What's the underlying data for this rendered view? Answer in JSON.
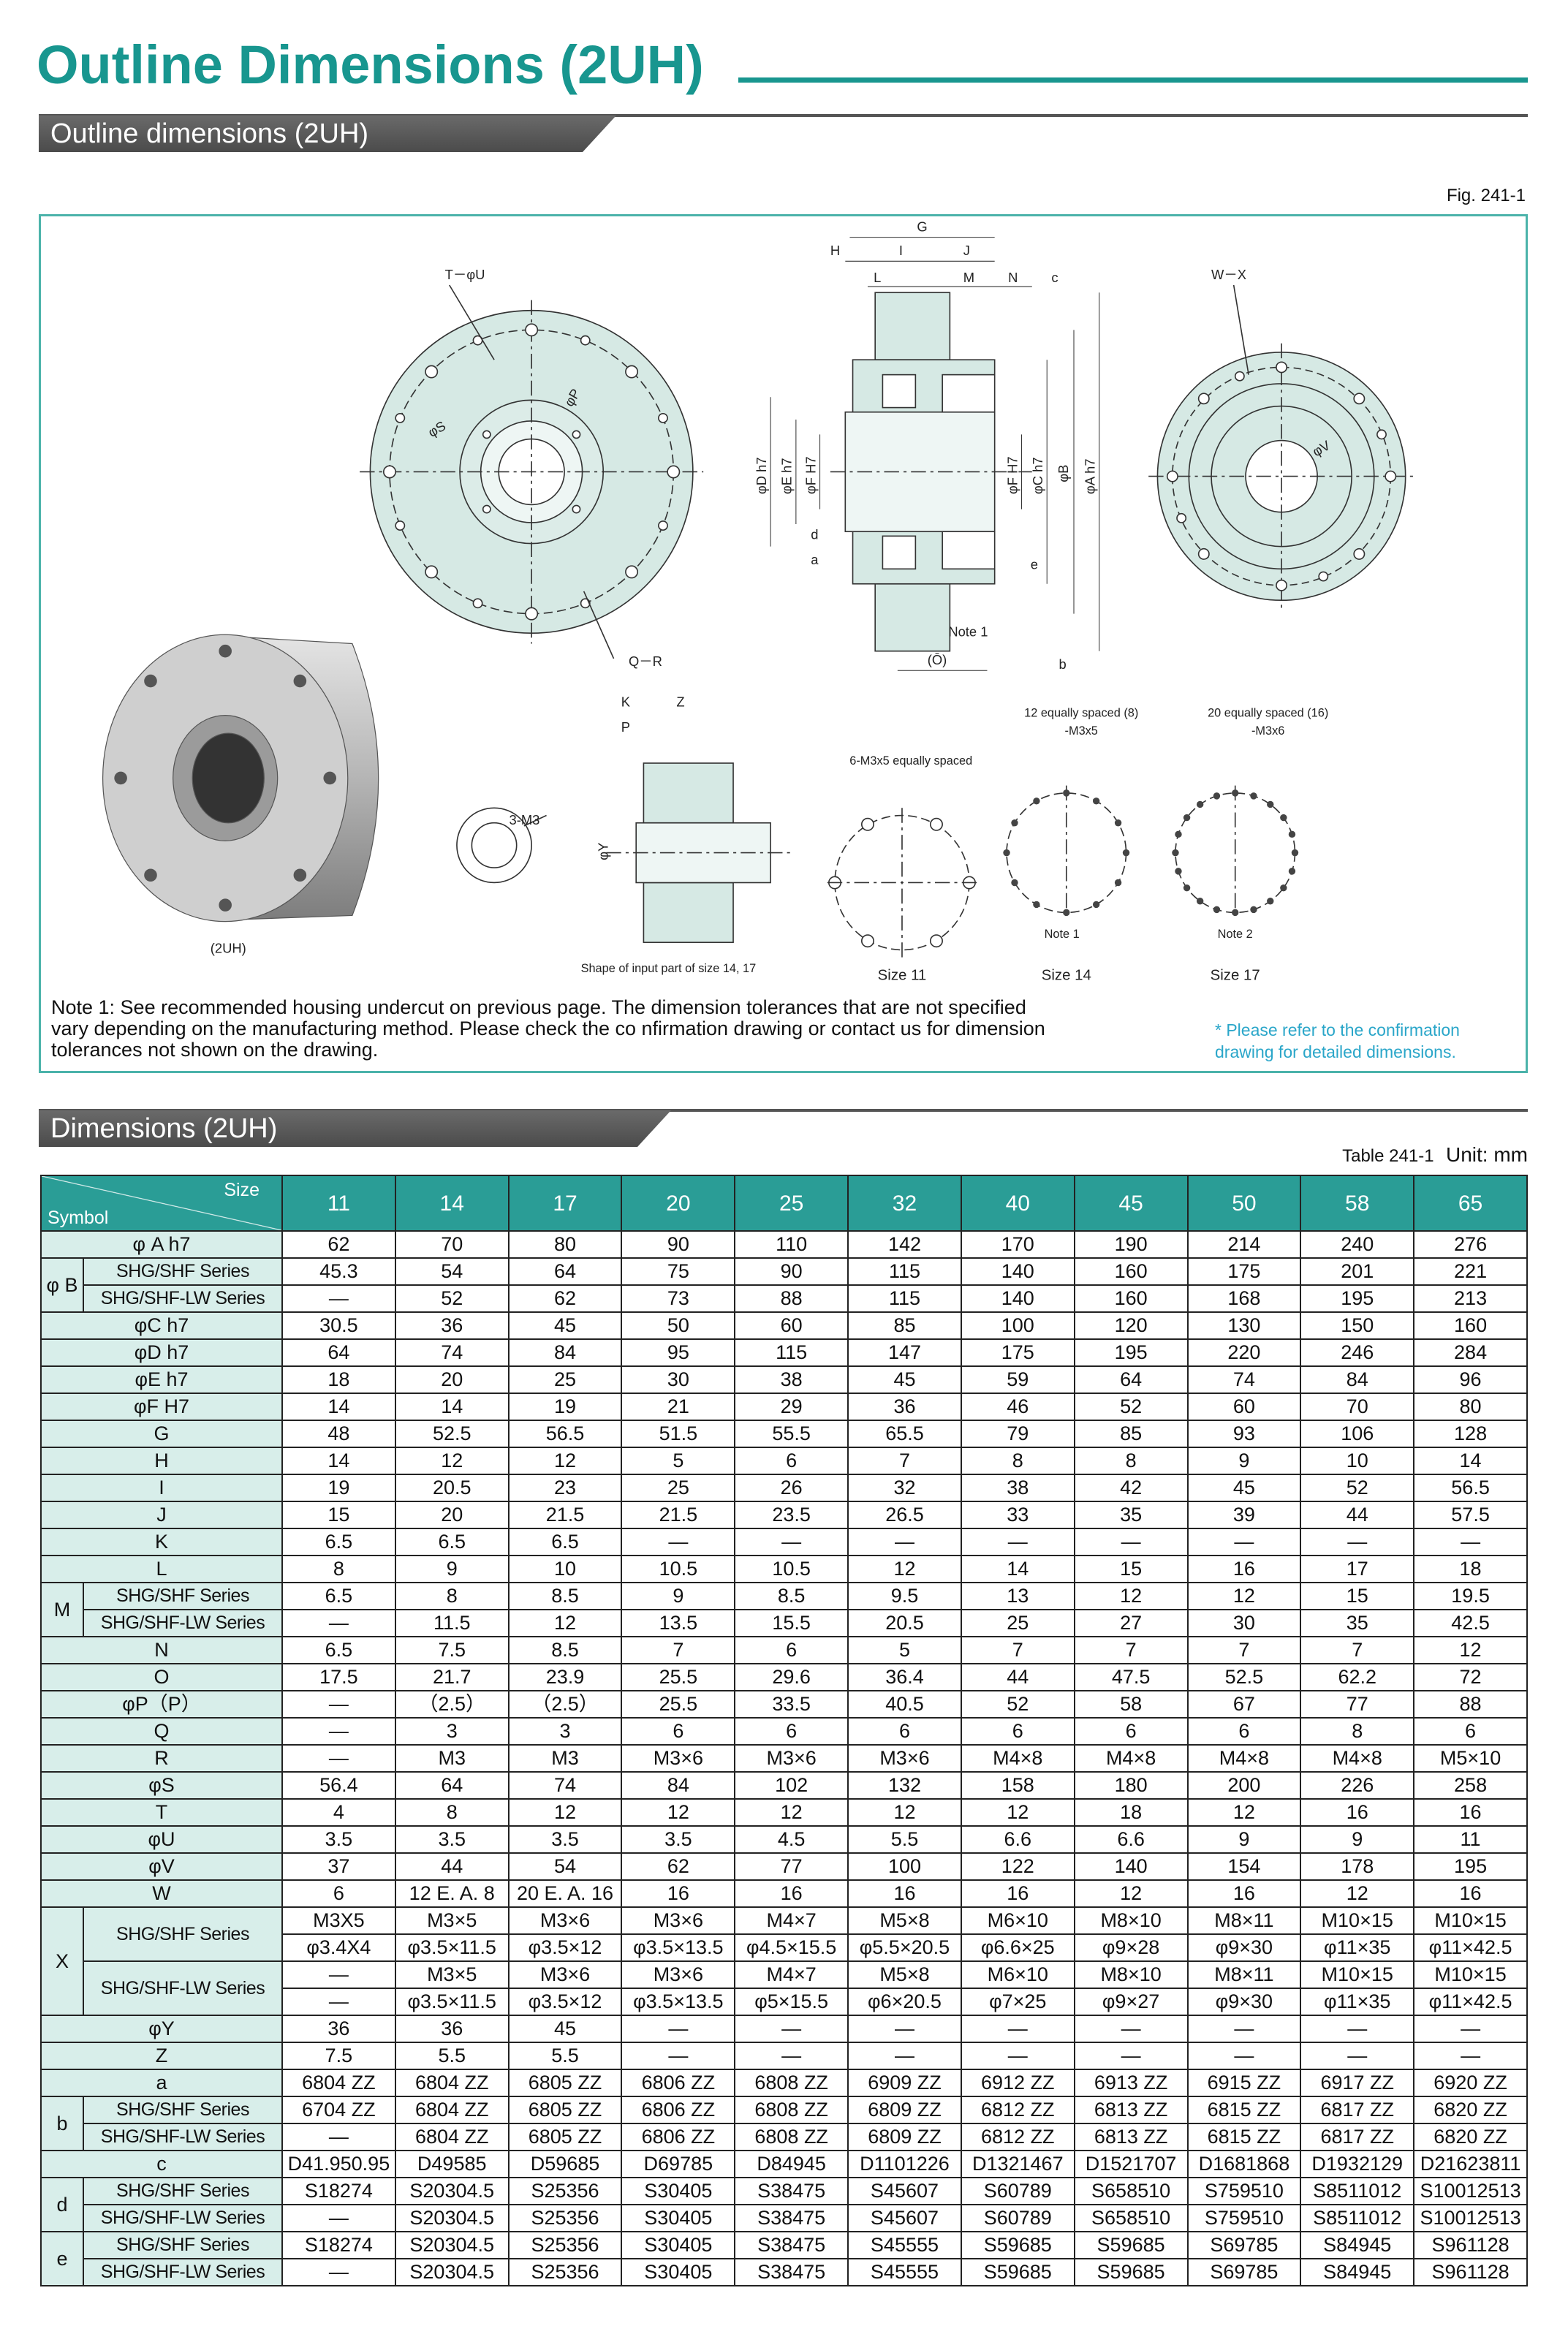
{
  "header": {
    "title": "Outline Dimensions (2UH)",
    "section": "Outline dimensions (2UH)"
  },
  "figure": {
    "caption": "Fig. 241-1",
    "labels": [
      "T－φU",
      "φS",
      "φP",
      "Q－R",
      "G",
      "H",
      "I",
      "J",
      "L",
      "M",
      "N",
      "c",
      "φD h7",
      "φE h7",
      "φF H7",
      "φF H7",
      "φC h7",
      "φB",
      "φA h7",
      "d",
      "a",
      "e",
      "Note 1",
      "(Ō)",
      "b",
      "W－X",
      "φV",
      "K",
      "Z",
      "P",
      "φY",
      "3-M3",
      "(2UH)",
      "Shape of input part of size 14, 17",
      "6-M3x5 equally spaced",
      "12 equally spaced (8)",
      "-M3x5",
      "20 equally spaced (16)",
      "-M3x6",
      "Size 11",
      "Size 14",
      "Size 17",
      "Note 1",
      "Note 2"
    ],
    "note": [
      "Note 1: See recommended housing undercut on previous page.  The dimension tolerances that are not specified",
      "vary depending on the manufacturing method. Please check the co nfirmation drawing or contact us for dimension",
      "tolerances not shown on the drawing."
    ],
    "side_note": [
      "* Please refer to the confirmation",
      "drawing for detailed dimensions."
    ]
  },
  "table": {
    "section": "Dimensions (2UH)",
    "caption": "Table 241-1",
    "unit": "Unit: mm",
    "size_label": "Size",
    "symbol_label": "Symbol",
    "sizes": [
      11,
      14,
      17,
      20,
      25,
      32,
      40,
      45,
      50,
      58,
      65
    ],
    "rows": [
      {
        "symbol": "φ A h7",
        "values": [
          62,
          70,
          80,
          90,
          110,
          142,
          170,
          190,
          214,
          240,
          276
        ]
      },
      {
        "group": "φ B",
        "rows": [
          {
            "symbol": "SHG/SHF Series",
            "values": [
              45.3,
              54,
              64,
              75,
              90,
              115,
              140,
              160,
              175,
              201,
              221
            ]
          },
          {
            "symbol": "SHG/SHF-LW Series",
            "values": [
              "—",
              52,
              62,
              73,
              88,
              115,
              140,
              160,
              168,
              195,
              213
            ]
          }
        ]
      },
      {
        "symbol": "φC h7",
        "values": [
          30.5,
          36,
          45,
          50,
          60,
          85,
          100,
          120,
          130,
          150,
          160
        ]
      },
      {
        "symbol": "φD h7",
        "values": [
          64,
          74,
          84,
          95,
          115,
          147,
          175,
          195,
          220,
          246,
          284
        ]
      },
      {
        "symbol": "φE h7",
        "values": [
          18,
          20,
          25,
          30,
          38,
          45,
          59,
          64,
          74,
          84,
          96
        ]
      },
      {
        "symbol": "φF H7",
        "values": [
          14,
          14,
          19,
          21,
          29,
          36,
          46,
          52,
          60,
          70,
          80
        ]
      },
      {
        "symbol": "G",
        "values": [
          48,
          52.5,
          56.5,
          51.5,
          55.5,
          65.5,
          79,
          85,
          93,
          106,
          128
        ]
      },
      {
        "symbol": "H",
        "values": [
          14,
          12,
          12,
          5,
          6,
          7,
          8,
          8,
          9,
          10,
          14
        ]
      },
      {
        "symbol": "I",
        "values": [
          19,
          20.5,
          23,
          25,
          26,
          32,
          38,
          42,
          45,
          52,
          56.5
        ]
      },
      {
        "symbol": "J",
        "values": [
          15,
          20,
          21.5,
          21.5,
          23.5,
          26.5,
          33,
          35,
          39,
          44,
          57.5
        ]
      },
      {
        "symbol": "K",
        "values": [
          6.5,
          6.5,
          6.5,
          "—",
          "—",
          "—",
          "—",
          "—",
          "—",
          "—",
          "—"
        ]
      },
      {
        "symbol": "L",
        "values": [
          8,
          9,
          10,
          10.5,
          10.5,
          12,
          14,
          15,
          16,
          17,
          18
        ]
      },
      {
        "group": "M",
        "rows": [
          {
            "symbol": "SHG/SHF Series",
            "values": [
              6.5,
              8,
              8.5,
              9,
              8.5,
              9.5,
              13,
              12,
              12,
              15,
              19.5
            ]
          },
          {
            "symbol": "SHG/SHF-LW Series",
            "values": [
              "—",
              11.5,
              12,
              13.5,
              15.5,
              20.5,
              25,
              27,
              30,
              35,
              42.5
            ]
          }
        ]
      },
      {
        "symbol": "N",
        "values": [
          6.5,
          7.5,
          8.5,
          7,
          6,
          5,
          7,
          7,
          7,
          7,
          12
        ]
      },
      {
        "symbol": "O",
        "values": [
          17.5,
          21.7,
          23.9,
          25.5,
          29.6,
          36.4,
          44,
          47.5,
          52.5,
          62.2,
          72
        ]
      },
      {
        "symbol": "φP（P）",
        "values": [
          "—",
          "（2.5）",
          "（2.5）",
          25.5,
          33.5,
          40.5,
          52,
          58,
          67,
          77,
          88
        ]
      },
      {
        "symbol": "Q",
        "values": [
          "—",
          3,
          3,
          6,
          6,
          6,
          6,
          6,
          6,
          8,
          6
        ]
      },
      {
        "symbol": "R",
        "values": [
          "—",
          "M3",
          "M3",
          "M3×6",
          "M3×6",
          "M3×6",
          "M4×8",
          "M4×8",
          "M4×8",
          "M4×8",
          "M5×10"
        ]
      },
      {
        "symbol": "φS",
        "values": [
          56.4,
          64,
          74,
          84,
          102,
          132,
          158,
          180,
          200,
          226,
          258
        ]
      },
      {
        "symbol": "T",
        "values": [
          4,
          8,
          12,
          12,
          12,
          12,
          12,
          18,
          12,
          16,
          16
        ]
      },
      {
        "symbol": "φU",
        "values": [
          3.5,
          3.5,
          3.5,
          3.5,
          4.5,
          5.5,
          6.6,
          6.6,
          9,
          9,
          11
        ]
      },
      {
        "symbol": "φV",
        "values": [
          37,
          44,
          54,
          62,
          77,
          100,
          122,
          140,
          154,
          178,
          195
        ]
      },
      {
        "symbol": "W",
        "values": [
          6,
          "12 E. A. 8",
          "20 E. A. 16",
          16,
          16,
          16,
          16,
          12,
          16,
          12,
          16
        ]
      },
      {
        "group": "X",
        "rows": [
          {
            "symbol": "SHG/SHF Series",
            "lines": [
              [
                "M3X5",
                "M3×5",
                "M3×6",
                "M3×6",
                "M4×7",
                "M5×8",
                "M6×10",
                "M8×10",
                "M8×11",
                "M10×15",
                "M10×15"
              ],
              [
                "φ3.4X4",
                "φ3.5×11.5",
                "φ3.5×12",
                "φ3.5×13.5",
                "φ4.5×15.5",
                "φ5.5×20.5",
                "φ6.6×25",
                "φ9×28",
                "φ9×30",
                "φ11×35",
                "φ11×42.5"
              ]
            ]
          },
          {
            "symbol": "SHG/SHF-LW Series",
            "lines": [
              [
                "—",
                "M3×5",
                "M3×6",
                "M3×6",
                "M4×7",
                "M5×8",
                "M6×10",
                "M8×10",
                "M8×11",
                "M10×15",
                "M10×15"
              ],
              [
                "—",
                "φ3.5×11.5",
                "φ3.5×12",
                "φ3.5×13.5",
                "φ5×15.5",
                "φ6×20.5",
                "φ7×25",
                "φ9×27",
                "φ9×30",
                "φ11×35",
                "φ11×42.5"
              ]
            ]
          }
        ]
      },
      {
        "symbol": "φY",
        "values": [
          36,
          36,
          45,
          "—",
          "—",
          "—",
          "—",
          "—",
          "—",
          "—",
          "—"
        ]
      },
      {
        "symbol": "Z",
        "values": [
          7.5,
          5.5,
          5.5,
          "—",
          "—",
          "—",
          "—",
          "—",
          "—",
          "—",
          "—"
        ]
      },
      {
        "symbol": "a",
        "values": [
          "6804 ZZ",
          "6804 ZZ",
          "6805 ZZ",
          "6806 ZZ",
          "6808 ZZ",
          "6909 ZZ",
          "6912 ZZ",
          "6913 ZZ",
          "6915 ZZ",
          "6917 ZZ",
          "6920 ZZ"
        ]
      },
      {
        "group": "b",
        "rows": [
          {
            "symbol": "SHG/SHF Series",
            "values": [
              "6704 ZZ",
              "6804 ZZ",
              "6805 ZZ",
              "6806 ZZ",
              "6808 ZZ",
              "6809 ZZ",
              "6812 ZZ",
              "6813 ZZ",
              "6815 ZZ",
              "6817 ZZ",
              "6820 ZZ"
            ]
          },
          {
            "symbol": "SHG/SHF-LW Series",
            "values": [
              "—",
              "6804 ZZ",
              "6805 ZZ",
              "6806 ZZ",
              "6808 ZZ",
              "6809 ZZ",
              "6812 ZZ",
              "6813 ZZ",
              "6815 ZZ",
              "6817 ZZ",
              "6820 ZZ"
            ]
          }
        ]
      },
      {
        "symbol": "c",
        "values": [
          "D41.950.95",
          "D49585",
          "D59685",
          "D69785",
          "D84945",
          "D1101226",
          "D1321467",
          "D1521707",
          "D1681868",
          "D1932129",
          "D21623811"
        ]
      },
      {
        "group": "d",
        "rows": [
          {
            "symbol": "SHG/SHF Series",
            "values": [
              "S18274",
              "S20304.5",
              "S25356",
              "S30405",
              "S38475",
              "S45607",
              "S60789",
              "S658510",
              "S759510",
              "S8511012",
              "S10012513"
            ]
          },
          {
            "symbol": "SHG/SHF-LW Series",
            "values": [
              "—",
              "S20304.5",
              "S25356",
              "S30405",
              "S38475",
              "S45607",
              "S60789",
              "S658510",
              "S759510",
              "S8511012",
              "S10012513"
            ]
          }
        ]
      },
      {
        "group": "e",
        "rows": [
          {
            "symbol": "SHG/SHF Series",
            "values": [
              "S18274",
              "S20304.5",
              "S25356",
              "S30405",
              "S38475",
              "S45555",
              "S59685",
              "S59685",
              "S69785",
              "S84945",
              "S961128"
            ]
          },
          {
            "symbol": "SHG/SHF-LW Series",
            "values": [
              "—",
              "S20304.5",
              "S25356",
              "S30405",
              "S38475",
              "S45555",
              "S59685",
              "S59685",
              "S69785",
              "S84945",
              "S961128"
            ]
          }
        ]
      }
    ]
  }
}
